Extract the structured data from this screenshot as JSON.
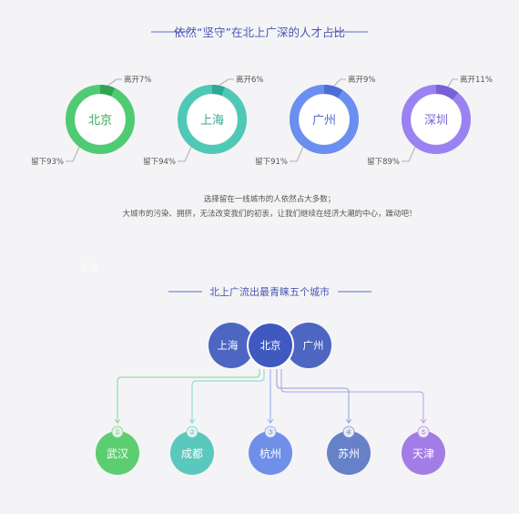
{
  "section1": {
    "title": "依然“坚守”在北上广深的人才占比",
    "line_color": "#5b6dcc",
    "title_color": "#4a56b0",
    "cities": [
      {
        "name": "北京",
        "leave_pct": 7,
        "stay_pct": 93,
        "leave_label": "离开7%",
        "stay_label": "留下93%",
        "color": "#4fcb73",
        "dark": "#2fa551",
        "text_color": "#3aa85a"
      },
      {
        "name": "上海",
        "leave_pct": 6,
        "stay_pct": 94,
        "leave_label": "离开6%",
        "stay_label": "留下94%",
        "color": "#4fc9b5",
        "dark": "#2fa895",
        "text_color": "#35a996"
      },
      {
        "name": "广州",
        "leave_pct": 9,
        "stay_pct": 91,
        "leave_label": "离开9%",
        "stay_label": "留下91%",
        "color": "#6b8ff0",
        "dark": "#4d6dd6",
        "text_color": "#4f6ed4"
      },
      {
        "name": "深圳",
        "leave_pct": 11,
        "stay_pct": 89,
        "leave_label": "离开11%",
        "stay_label": "留下89%",
        "color": "#9b82f2",
        "dark": "#7a60d8",
        "text_color": "#7a63d6"
      }
    ],
    "caption_line1": "选择留在一线城市的人依然占大多数；",
    "caption_line2": "大城市的污染、拥挤，无法改变我们的初衷，让我们继续在经济大潮的中心，躁动吧！"
  },
  "watermark": "北京",
  "section2": {
    "title": "北上广流出最青睐五个城市",
    "sources": [
      {
        "name": "上海",
        "color": "#4c66c2"
      },
      {
        "name": "广州",
        "color": "#4c66c2"
      },
      {
        "name": "北京",
        "color": "#3f59c0"
      }
    ],
    "targets": [
      {
        "rank": "①",
        "name": "武汉",
        "color": "#5ccd71",
        "line": "#7ddc8e"
      },
      {
        "rank": "②",
        "name": "成都",
        "color": "#5bc8bd",
        "line": "#7fd8cf"
      },
      {
        "rank": "③",
        "name": "杭州",
        "color": "#6f8fe8",
        "line": "#8fa8ee"
      },
      {
        "rank": "④",
        "name": "苏州",
        "color": "#6681c8",
        "line": "#8da0d8"
      },
      {
        "rank": "⑤",
        "name": "天津",
        "color": "#a27de6",
        "line": "#b89bef"
      }
    ]
  }
}
